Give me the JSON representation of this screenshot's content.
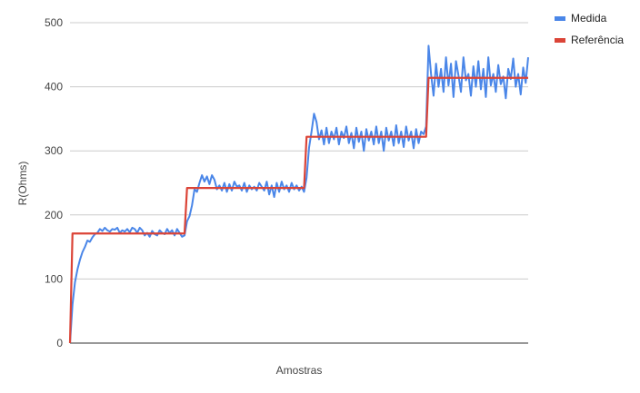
{
  "chart_data": {
    "type": "line",
    "xlabel": "Amostras",
    "ylabel": "R(Ohms)",
    "ylim": [
      0,
      500
    ],
    "yticks": [
      0,
      100,
      200,
      300,
      400,
      500
    ],
    "grid": true,
    "legend_position": "right",
    "series": [
      {
        "name": "Medida",
        "color": "#4a86e8",
        "values": [
          0,
          60,
          95,
          115,
          130,
          142,
          150,
          160,
          158,
          165,
          170,
          172,
          178,
          175,
          180,
          176,
          174,
          178,
          177,
          180,
          172,
          176,
          174,
          178,
          173,
          180,
          178,
          172,
          180,
          176,
          168,
          172,
          166,
          175,
          170,
          168,
          176,
          172,
          170,
          178,
          172,
          176,
          168,
          178,
          172,
          166,
          168,
          190,
          198,
          215,
          240,
          236,
          250,
          262,
          252,
          260,
          248,
          262,
          255,
          240,
          246,
          238,
          250,
          236,
          248,
          238,
          252,
          244,
          246,
          238,
          250,
          236,
          246,
          240,
          244,
          238,
          250,
          244,
          238,
          252,
          232,
          246,
          228,
          250,
          236,
          252,
          240,
          246,
          236,
          250,
          240,
          246,
          238,
          244,
          236,
          258,
          305,
          330,
          358,
          345,
          318,
          332,
          310,
          336,
          312,
          330,
          318,
          336,
          310,
          330,
          320,
          338,
          312,
          328,
          304,
          336,
          314,
          330,
          300,
          334,
          316,
          330,
          310,
          338,
          312,
          330,
          300,
          336,
          316,
          330,
          308,
          340,
          312,
          330,
          306,
          338,
          316,
          330,
          304,
          334,
          312,
          330,
          326,
          338,
          464,
          420,
          386,
          436,
          400,
          428,
          392,
          446,
          402,
          436,
          384,
          440,
          418,
          392,
          446,
          410,
          420,
          386,
          432,
          400,
          440,
          396,
          428,
          384,
          446,
          402,
          420,
          392,
          434,
          404,
          416,
          382,
          428,
          412,
          444,
          400,
          420,
          388,
          430,
          406,
          446
        ]
      },
      {
        "name": "Referência",
        "color": "#db4437",
        "values": [
          0,
          171,
          171,
          171,
          171,
          171,
          171,
          171,
          171,
          171,
          171,
          171,
          171,
          171,
          171,
          171,
          171,
          171,
          171,
          171,
          171,
          171,
          171,
          171,
          171,
          171,
          171,
          171,
          171,
          171,
          171,
          171,
          171,
          171,
          171,
          171,
          171,
          171,
          171,
          171,
          171,
          171,
          171,
          171,
          171,
          171,
          171,
          242,
          242,
          242,
          242,
          242,
          242,
          242,
          242,
          242,
          242,
          242,
          242,
          242,
          242,
          242,
          242,
          242,
          242,
          242,
          242,
          242,
          242,
          242,
          242,
          242,
          242,
          242,
          242,
          242,
          242,
          242,
          242,
          242,
          242,
          242,
          242,
          242,
          242,
          242,
          242,
          242,
          242,
          242,
          242,
          242,
          242,
          242,
          242,
          322,
          322,
          322,
          322,
          322,
          322,
          322,
          322,
          322,
          322,
          322,
          322,
          322,
          322,
          322,
          322,
          322,
          322,
          322,
          322,
          322,
          322,
          322,
          322,
          322,
          322,
          322,
          322,
          322,
          322,
          322,
          322,
          322,
          322,
          322,
          322,
          322,
          322,
          322,
          322,
          322,
          322,
          322,
          322,
          322,
          322,
          322,
          322,
          322,
          414,
          414,
          414,
          414,
          414,
          414,
          414,
          414,
          414,
          414,
          414,
          414,
          414,
          414,
          414,
          414,
          414,
          414,
          414,
          414,
          414,
          414,
          414,
          414,
          414,
          414,
          414,
          414,
          414,
          414,
          414,
          414,
          414,
          414,
          414,
          414,
          414,
          414,
          414,
          414,
          414
        ]
      }
    ]
  }
}
